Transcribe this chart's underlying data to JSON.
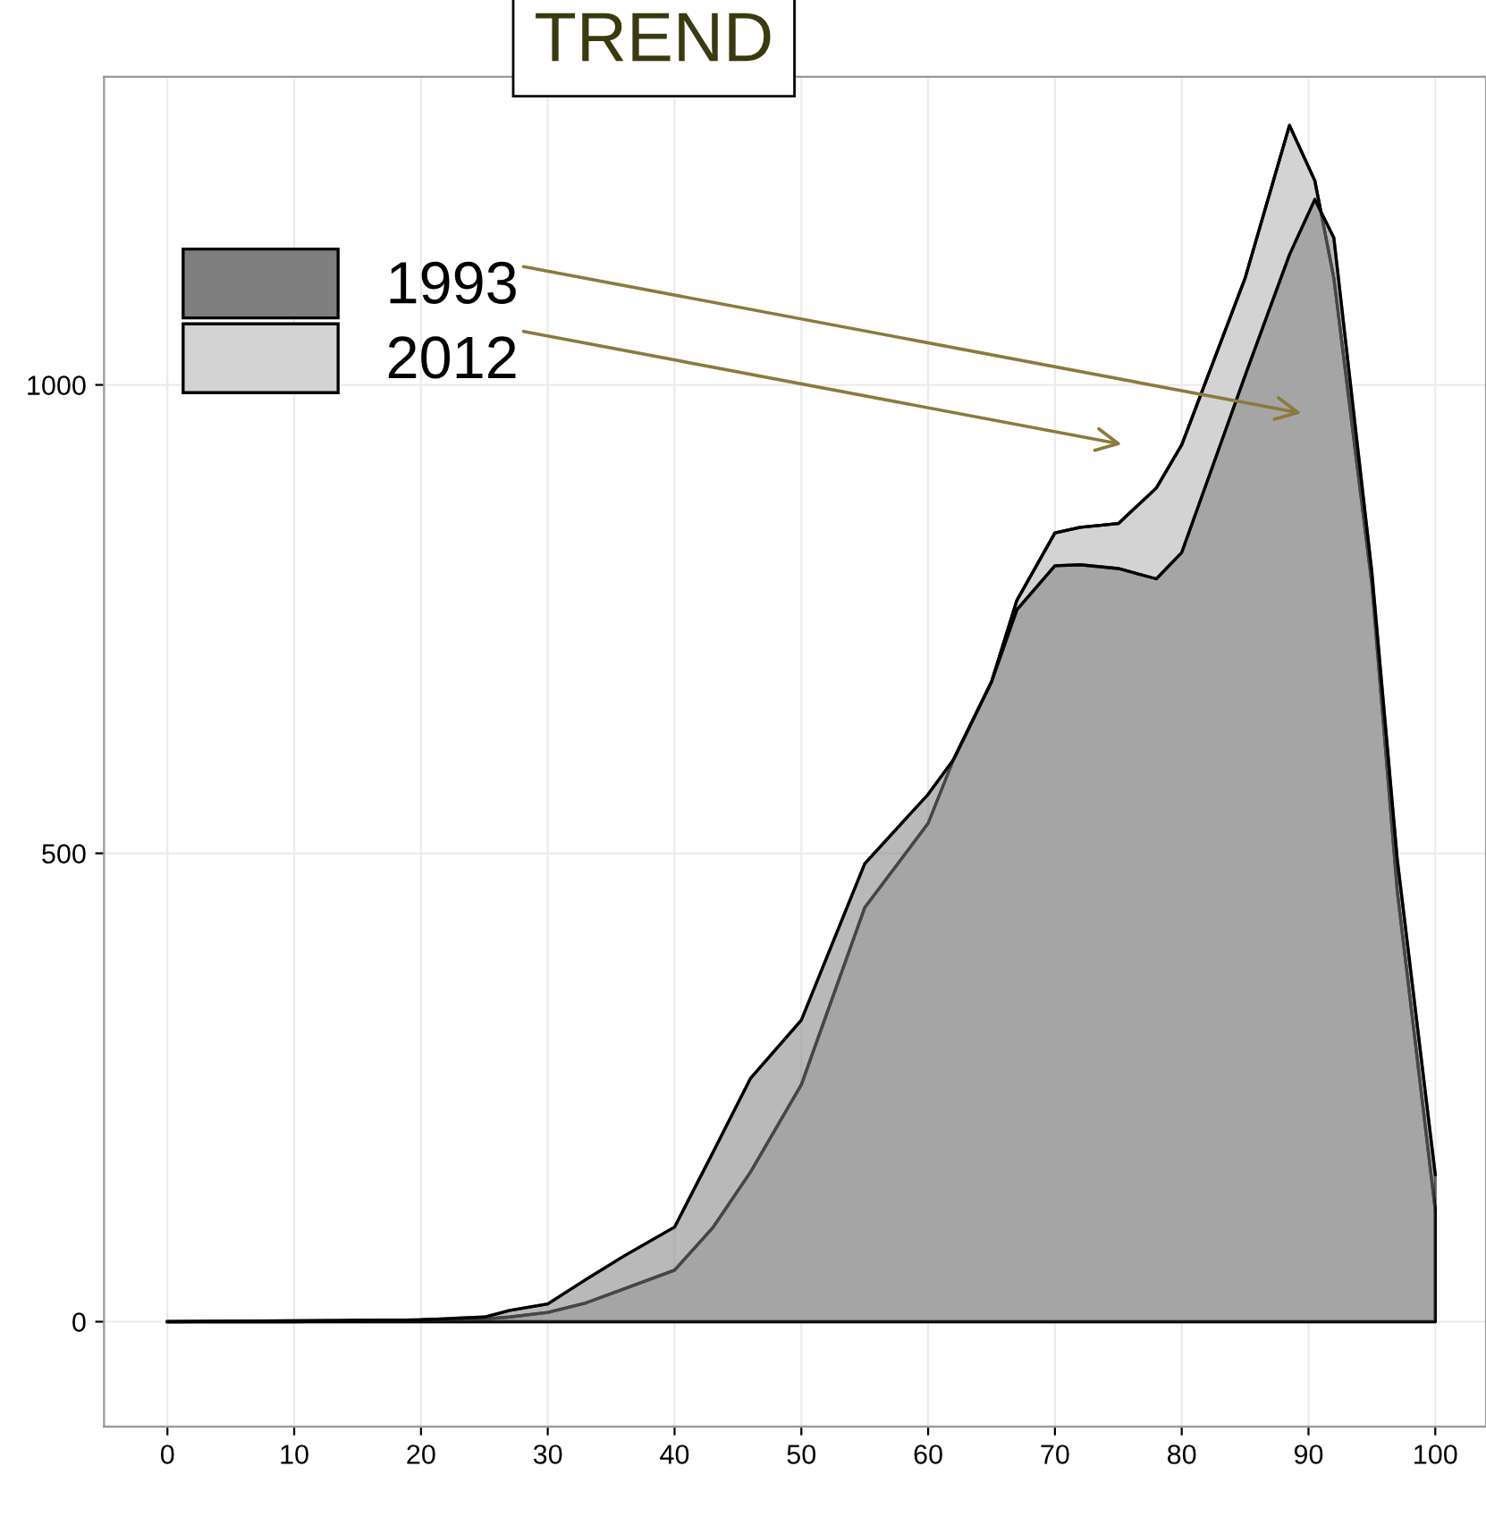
{
  "chart_data": {
    "type": "area",
    "title": "TREND",
    "x": [
      0,
      10,
      20,
      25,
      27,
      30,
      33,
      36,
      40,
      43,
      46,
      50,
      55,
      60,
      62,
      65,
      67,
      70,
      72,
      75,
      78,
      80,
      85,
      88.5,
      90.5,
      92,
      95,
      97,
      100
    ],
    "series": [
      {
        "name": "1993",
        "color": "#7f7f7f",
        "values": [
          0,
          1,
          2,
          5,
          12,
          19,
          45,
          70,
          101,
          180,
          260,
          322,
          489,
          563,
          600,
          683,
          760,
          807,
          808,
          804,
          793,
          821,
          1010,
          1139,
          1198,
          1157,
          800,
          494,
          157
        ]
      },
      {
        "name": "2012",
        "color": "#d3d3d3",
        "values": [
          0,
          0,
          2,
          3,
          5,
          10,
          20,
          35,
          55,
          100,
          160,
          253,
          442,
          532,
          600,
          683,
          770,
          842,
          848,
          852,
          890,
          936,
          1114,
          1277,
          1218,
          1114,
          787,
          460,
          119
        ]
      }
    ],
    "xlim": [
      -5,
      104
    ],
    "ylim": [
      -112,
      1329
    ],
    "xticks": [
      0,
      10,
      20,
      30,
      40,
      50,
      60,
      70,
      80,
      90,
      100
    ],
    "yticks": [
      0,
      500,
      1000
    ],
    "grid": true,
    "legend": "top left"
  }
}
